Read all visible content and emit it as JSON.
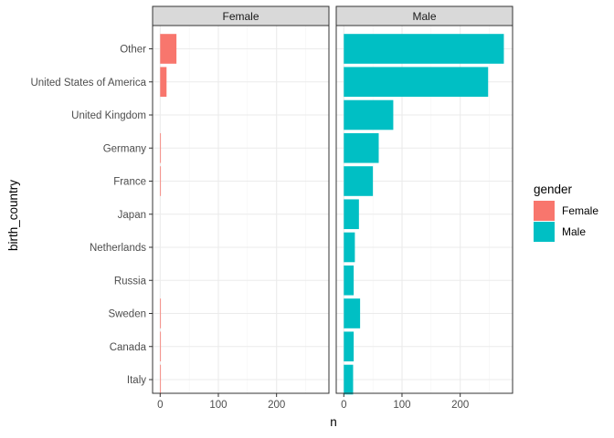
{
  "chart_data": {
    "type": "bar",
    "orientation": "horizontal",
    "facet_variable": "gender",
    "facets": [
      "Female",
      "Male"
    ],
    "categories": [
      "Other",
      "United States of America",
      "United Kingdom",
      "Germany",
      "France",
      "Japan",
      "Netherlands",
      "Russia",
      "Sweden",
      "Canada",
      "Italy"
    ],
    "series": [
      {
        "name": "Female",
        "values": [
          28,
          11,
          0,
          1,
          1,
          0,
          0,
          0,
          1,
          1,
          1
        ]
      },
      {
        "name": "Male",
        "values": [
          275,
          248,
          85,
          60,
          50,
          26,
          19,
          17,
          28,
          17,
          16
        ]
      }
    ],
    "xlabel": "n",
    "ylabel": "birth_country",
    "xlim": [
      -13,
      290
    ],
    "xticks": [
      0,
      100,
      200
    ],
    "xtick_labels": [
      "0",
      "100",
      "200"
    ],
    "grid": true,
    "legend": {
      "title": "gender",
      "position": "right",
      "entries": [
        "Female",
        "Male"
      ]
    },
    "colors": {
      "Female": "#F8766D",
      "Male": "#00BFC4",
      "strip_fill": "#D9D9D9",
      "panel_border": "#333333",
      "grid_major": "#EBEBEB",
      "grid_minor": "#F5F5F5"
    }
  }
}
